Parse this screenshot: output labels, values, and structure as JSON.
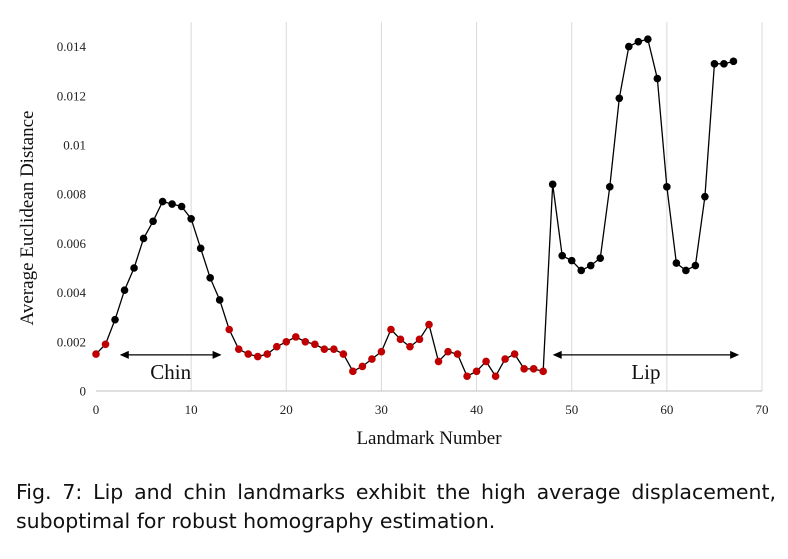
{
  "chart_data": {
    "type": "line",
    "xlabel": "Landmark Number",
    "ylabel": "Average Euclidean Distance",
    "xlim": [
      0,
      70
    ],
    "ylim": [
      0,
      0.015
    ],
    "xticks": [
      0,
      10,
      20,
      30,
      40,
      50,
      60,
      70
    ],
    "xtick_labels": [
      "0",
      "10",
      "20",
      "30",
      "40",
      "50",
      "60",
      "70"
    ],
    "yticks": [
      0,
      0.002,
      0.004,
      0.006,
      0.008,
      0.01,
      0.012,
      0.014
    ],
    "ytick_labels": [
      "0",
      "0.002",
      "0.004",
      "0.006",
      "0.008",
      "0.01",
      "0.012",
      "0.014"
    ],
    "grid": "vertical",
    "line_color": "#000000",
    "marker_colors": {
      "black": "#000000",
      "red": "#c00000"
    },
    "x": [
      0,
      1,
      2,
      3,
      4,
      5,
      6,
      7,
      8,
      9,
      10,
      11,
      12,
      13,
      14,
      15,
      16,
      17,
      18,
      19,
      20,
      21,
      22,
      23,
      24,
      25,
      26,
      27,
      28,
      29,
      30,
      31,
      32,
      33,
      34,
      35,
      36,
      37,
      38,
      39,
      40,
      41,
      42,
      43,
      44,
      45,
      46,
      47,
      48,
      49,
      50,
      51,
      52,
      53,
      54,
      55,
      56,
      57,
      58,
      59,
      60,
      61,
      62,
      63,
      64,
      65,
      66,
      67
    ],
    "y": [
      0.0015,
      0.0019,
      0.0029,
      0.0041,
      0.005,
      0.0062,
      0.0069,
      0.0077,
      0.0076,
      0.0075,
      0.007,
      0.0058,
      0.0046,
      0.0037,
      0.0025,
      0.0017,
      0.0015,
      0.0014,
      0.0015,
      0.0018,
      0.002,
      0.0022,
      0.002,
      0.0019,
      0.0017,
      0.0017,
      0.0015,
      0.0008,
      0.001,
      0.0013,
      0.0016,
      0.0025,
      0.0021,
      0.0018,
      0.0021,
      0.0027,
      0.0012,
      0.0016,
      0.0015,
      0.0006,
      0.0008,
      0.0012,
      0.0006,
      0.0013,
      0.0015,
      0.0009,
      0.0009,
      0.0008,
      0.0084,
      0.0055,
      0.0053,
      0.0049,
      0.0051,
      0.0054,
      0.0083,
      0.0119,
      0.014,
      0.0142,
      0.0143,
      0.0127,
      0.0083,
      0.0052,
      0.0049,
      0.0051,
      0.0079,
      0.0133,
      0.0133,
      0.0134
    ],
    "marker_color_index": [
      "red",
      "red",
      "black",
      "black",
      "black",
      "black",
      "black",
      "black",
      "black",
      "black",
      "black",
      "black",
      "black",
      "black",
      "red",
      "red",
      "red",
      "red",
      "red",
      "red",
      "red",
      "red",
      "red",
      "red",
      "red",
      "red",
      "red",
      "red",
      "red",
      "red",
      "red",
      "red",
      "red",
      "red",
      "red",
      "red",
      "red",
      "red",
      "red",
      "red",
      "red",
      "red",
      "red",
      "red",
      "red",
      "red",
      "red",
      "red",
      "black",
      "black",
      "black",
      "black",
      "black",
      "black",
      "black",
      "black",
      "black",
      "black",
      "black",
      "black",
      "black",
      "black",
      "black",
      "black",
      "black",
      "black",
      "black",
      "black"
    ],
    "annotations": [
      {
        "label": "Chin",
        "x_from": 2.5,
        "x_to": 13.2,
        "y": 0.00147
      },
      {
        "label": "Lip",
        "x_from": 48,
        "x_to": 67.6,
        "y": 0.00147
      }
    ]
  },
  "caption": "Fig. 7: Lip and chin landmarks exhibit the high average displacement, suboptimal for robust homography estimation."
}
